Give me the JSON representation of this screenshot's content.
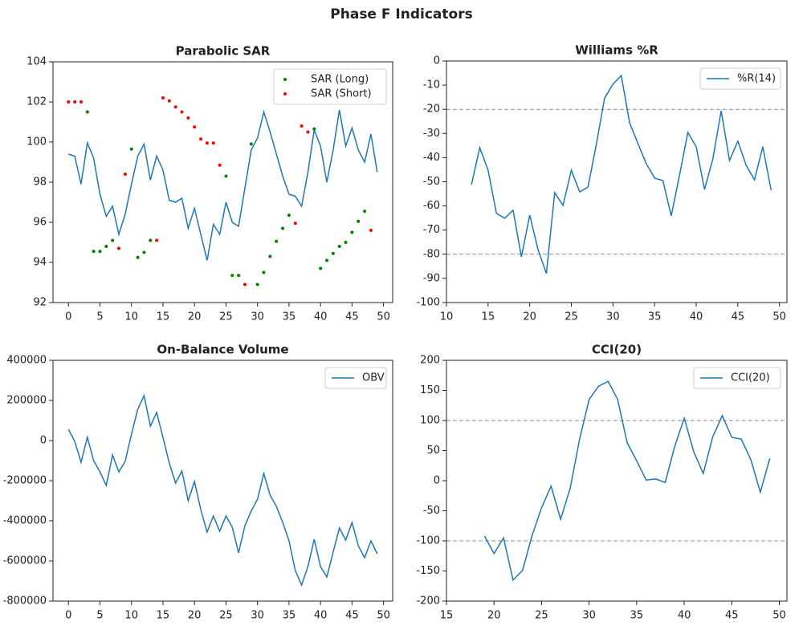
{
  "title": "Phase F Indicators",
  "chart_data": [
    {
      "type": "line",
      "title": "Parabolic SAR",
      "xlim": [
        -2.45,
        51.45
      ],
      "ylim": [
        92,
        104
      ],
      "xticks": [
        0,
        5,
        10,
        15,
        20,
        25,
        30,
        35,
        40,
        45,
        50
      ],
      "yticks": [
        92,
        94,
        96,
        98,
        100,
        102,
        104
      ],
      "legend": "upper right",
      "series": [
        {
          "type": "line",
          "color": "#1f77b4",
          "x": [
            0,
            1,
            2,
            3,
            4,
            5,
            6,
            7,
            8,
            9,
            10,
            11,
            12,
            13,
            14,
            15,
            16,
            17,
            18,
            19,
            20,
            21,
            22,
            23,
            24,
            25,
            26,
            27,
            28,
            29,
            30,
            31,
            32,
            33,
            34,
            35,
            36,
            37,
            38,
            39,
            40,
            41,
            42,
            43,
            44,
            45,
            46,
            47,
            48,
            49
          ],
          "values": [
            99.4,
            99.3,
            97.9,
            99.96,
            99.2,
            97.4,
            96.3,
            96.8,
            95.4,
            96.4,
            97.9,
            99.3,
            99.9,
            98.1,
            99.3,
            98.6,
            97.1,
            97.0,
            97.2,
            95.7,
            96.7,
            95.4,
            94.1,
            95.9,
            95.4,
            97.0,
            96.0,
            95.8,
            97.7,
            99.6,
            100.2,
            101.5,
            100.5,
            99.4,
            98.3,
            97.4,
            97.3,
            96.8,
            98.5,
            100.6,
            99.8,
            98.0,
            99.6,
            101.6,
            99.8,
            100.7,
            99.6,
            99.0,
            100.4,
            98.5
          ]
        },
        {
          "type": "scatter",
          "name": "SAR (Long)",
          "color": "green",
          "x": [
            3,
            4,
            5,
            6,
            7,
            10,
            11,
            12,
            13,
            25,
            26,
            27,
            29,
            30,
            31,
            32,
            33,
            34,
            35,
            39,
            40,
            41,
            42,
            43,
            44,
            45,
            46,
            47
          ],
          "values": [
            101.5,
            94.55,
            94.55,
            94.8,
            95.1,
            99.65,
            94.25,
            94.5,
            95.1,
            98.3,
            93.35,
            93.35,
            99.9,
            92.9,
            93.5,
            94.3,
            95.05,
            95.7,
            96.35,
            100.65,
            93.7,
            94.1,
            94.45,
            94.8,
            95.0,
            95.5,
            96.05,
            96.55
          ]
        },
        {
          "type": "scatter",
          "name": "SAR (Short)",
          "color": "red",
          "x": [
            0,
            1,
            2,
            8,
            9,
            14,
            15,
            16,
            17,
            18,
            19,
            20,
            21,
            22,
            23,
            24,
            28,
            36,
            37,
            38,
            48
          ],
          "values": [
            102,
            102,
            102,
            94.7,
            98.4,
            95.1,
            102.2,
            102.05,
            101.75,
            101.5,
            101.2,
            100.75,
            100.15,
            99.95,
            99.95,
            98.85,
            92.9,
            95.95,
            100.8,
            100.5,
            95.6
          ]
        }
      ]
    },
    {
      "type": "line",
      "title": "Williams %R",
      "xlim": [
        10,
        50.9
      ],
      "ylim": [
        -100,
        0
      ],
      "xticks": [
        10,
        15,
        20,
        25,
        30,
        35,
        40,
        45,
        50
      ],
      "yticks": [
        -100,
        -90,
        -80,
        -70,
        -60,
        -50,
        -40,
        -30,
        -20,
        -10,
        0
      ],
      "legend": "upper right",
      "hlines": [
        -20,
        -80
      ],
      "hline_color": "#888888",
      "series": [
        {
          "type": "line",
          "name": "%R(14)",
          "color": "#1f77b4",
          "x": [
            13,
            14,
            15,
            16,
            17,
            18,
            19,
            20,
            21,
            22,
            23,
            24,
            25,
            26,
            27,
            28,
            29,
            30,
            31,
            32,
            33,
            34,
            35,
            36,
            37,
            38,
            39,
            40,
            41,
            42,
            43,
            44,
            45,
            46,
            47,
            48,
            49
          ],
          "values": [
            -51.2,
            -35.9,
            -45.2,
            -63.1,
            -65.1,
            -61.8,
            -81.1,
            -63.8,
            -78.1,
            -88.0,
            -54.5,
            -59.8,
            -45.2,
            -54.2,
            -52.2,
            -34.6,
            -15.3,
            -9.6,
            -6.0,
            -25.6,
            -34.2,
            -42.5,
            -48.5,
            -49.5,
            -64.1,
            -47.2,
            -29.6,
            -35.5,
            -53.2,
            -40.5,
            -20.6,
            -41.2,
            -33.2,
            -43.2,
            -49.2,
            -35.5,
            -53.5
          ]
        }
      ]
    },
    {
      "type": "line",
      "title": "On-Balance Volume",
      "xlim": [
        -2.45,
        51.45
      ],
      "ylim": [
        -800000,
        400000
      ],
      "xticks": [
        0,
        5,
        10,
        15,
        20,
        25,
        30,
        35,
        40,
        45,
        50
      ],
      "yticks": [
        -800000,
        -600000,
        -400000,
        -200000,
        0,
        200000,
        400000
      ],
      "legend": "upper right",
      "series": [
        {
          "type": "line",
          "name": "OBV",
          "color": "#1f77b4",
          "x": [
            0,
            1,
            2,
            3,
            4,
            5,
            6,
            7,
            8,
            9,
            10,
            11,
            12,
            13,
            14,
            15,
            16,
            17,
            18,
            19,
            20,
            21,
            22,
            23,
            24,
            25,
            26,
            27,
            28,
            29,
            30,
            31,
            32,
            33,
            34,
            35,
            36,
            37,
            38,
            39,
            40,
            41,
            42,
            43,
            44,
            45,
            46,
            47,
            48,
            49
          ],
          "values": [
            56000,
            -4000,
            -108000,
            16000,
            -100000,
            -156000,
            -224000,
            -72000,
            -156000,
            -104000,
            32000,
            156000,
            224000,
            72000,
            140000,
            16000,
            -112000,
            -212000,
            -152000,
            -300000,
            -204000,
            -344000,
            -456000,
            -376000,
            -452000,
            -376000,
            -432000,
            -560000,
            -424000,
            -352000,
            -292000,
            -164000,
            -272000,
            -328000,
            -408000,
            -500000,
            -648000,
            -720000,
            -628000,
            -492000,
            -628000,
            -680000,
            -556000,
            -436000,
            -496000,
            -408000,
            -524000,
            -584000,
            -500000,
            -564000
          ]
        }
      ]
    },
    {
      "type": "line",
      "title": "CCI(20)",
      "xlim": [
        15,
        50.8
      ],
      "ylim": [
        -200,
        200
      ],
      "xticks": [
        15,
        20,
        25,
        30,
        35,
        40,
        45,
        50
      ],
      "yticks": [
        -200,
        -150,
        -100,
        -50,
        0,
        50,
        100,
        150,
        200
      ],
      "legend": "upper right",
      "hlines": [
        100,
        -100
      ],
      "hline_color": "#888888",
      "series": [
        {
          "type": "line",
          "name": "CCI(20)",
          "color": "#1f77b4",
          "x": [
            19,
            20,
            21,
            22,
            23,
            24,
            25,
            26,
            27,
            28,
            29,
            30,
            31,
            32,
            33,
            34,
            35,
            36,
            37,
            38,
            39,
            40,
            41,
            42,
            43,
            44,
            45,
            46,
            47,
            48,
            49
          ],
          "values": [
            -92,
            -121,
            -95,
            -165,
            -149,
            -91,
            -45,
            -9,
            -64,
            -13,
            69,
            135,
            157,
            165,
            135,
            63,
            33,
            1,
            3,
            -3,
            57,
            104,
            48,
            12,
            73,
            108,
            72,
            69,
            35,
            -19,
            37
          ]
        }
      ]
    }
  ]
}
